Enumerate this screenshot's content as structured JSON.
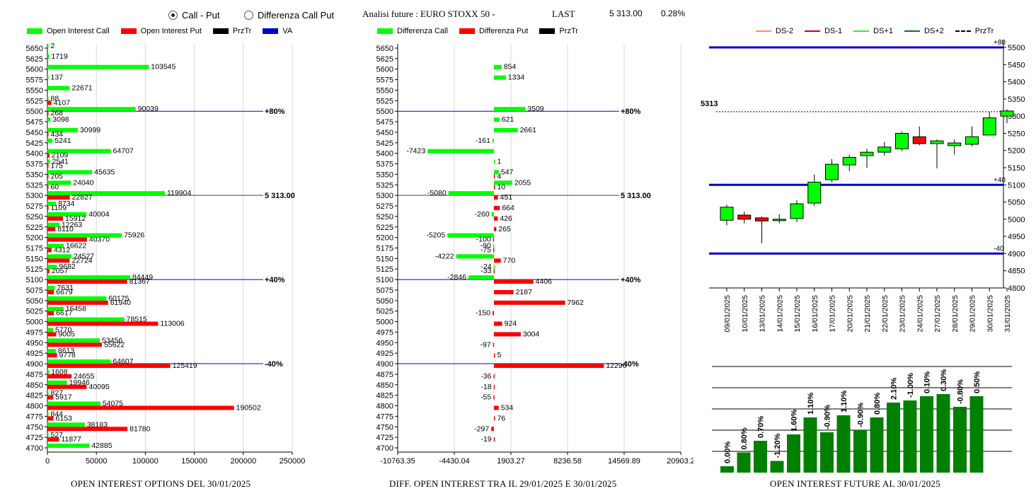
{
  "controls": {
    "radio_call_put": "Call - Put",
    "radio_diff": "Differenza Call Put",
    "selected": "call_put"
  },
  "header": {
    "title": "Analisi future : EURO STOXX 50 -",
    "last_label": "LAST",
    "last_value": "5 313.00",
    "change": "0.28%"
  },
  "colors": {
    "green": "#00ff00",
    "red": "#ff0000",
    "blue": "#0000cc",
    "dark_green": "#008000",
    "black": "#000000"
  },
  "legend_left": [
    {
      "label": "Open Interest Call",
      "color": "#00ff00"
    },
    {
      "label": "Open Interest Put",
      "color": "#ff0000"
    },
    {
      "label": "PrzTr",
      "color": "#000000"
    },
    {
      "label": "VA",
      "color": "#0000cc"
    }
  ],
  "legend_mid": [
    {
      "label": "Differenza Call",
      "color": "#00ff00"
    },
    {
      "label": "Differenza Put",
      "color": "#ff0000"
    },
    {
      "label": "PrzTr",
      "color": "#000000"
    }
  ],
  "legend_right": [
    {
      "label": "DS-2",
      "color": "#ff8c5a",
      "style": "solid"
    },
    {
      "label": "DS-1",
      "color": "#cc0000",
      "style": "solid"
    },
    {
      "label": "DS+1",
      "color": "#33ee33",
      "style": "solid"
    },
    {
      "label": "DS+2",
      "color": "#008000",
      "style": "solid"
    },
    {
      "label": "PrzTr",
      "color": "#000000",
      "style": "dashed"
    }
  ],
  "footers": {
    "left": "OPEN INTEREST OPTIONS DEL 30/01/2025",
    "mid": "DIFF. OPEN INTEREST TRA IL 29/01/2025 E 30/01/2025",
    "right": "OPEN INTEREST FUTURE AL 30/01/2025"
  },
  "chart_data": [
    {
      "type": "bar",
      "orientation": "horizontal",
      "title": "OPEN INTEREST OPTIONS DEL 30/01/2025",
      "strikes": [
        "5650",
        "5625",
        "5600",
        "5575",
        "5550",
        "5525",
        "5500",
        "5475",
        "5450",
        "5425",
        "5400",
        "5375",
        "5350",
        "5325",
        "5300",
        "5275",
        "5250",
        "5225",
        "5200",
        "5175",
        "5150",
        "5125",
        "5100",
        "5075",
        "5050",
        "5025",
        "5000",
        "4975",
        "4950",
        "4925",
        "4900",
        "4875",
        "4850",
        "4825",
        "4800",
        "4775",
        "4750",
        "4725",
        "4700"
      ],
      "series": [
        {
          "name": "Open Interest Call",
          "values": [
            2,
            1719,
            103545,
            137,
            22671,
            88,
            90039,
            3098,
            30999,
            5241,
            64707,
            2541,
            45635,
            24040,
            119904,
            8734,
            40004,
            12263,
            75926,
            16622,
            24527,
            9682,
            84449,
            7631,
            60175,
            16458,
            78515,
            5770,
            53456,
            8613,
            64607,
            1608,
            19946,
            827,
            54075,
            844,
            38183,
            527,
            42885
          ]
        },
        {
          "name": "Open Interest Put",
          "values": [
            null,
            null,
            null,
            null,
            null,
            4107,
            268,
            null,
            434,
            null,
            2109,
            175,
            205,
            60,
            22827,
            1109,
            15912,
            8110,
            40370,
            4312,
            22724,
            2057,
            81367,
            6679,
            61940,
            6617,
            113006,
            9005,
            55622,
            9778,
            125419,
            24655,
            40095,
            5917,
            190502,
            6153,
            81780,
            11877,
            null
          ]
        }
      ],
      "xlim": [
        0,
        250000
      ],
      "xticks": [
        "0",
        "50000",
        "100000",
        "150000",
        "200000",
        "250000"
      ],
      "annotations": [
        {
          "strike": "5500",
          "label": "+80%"
        },
        {
          "strike": "5300",
          "label": "5 313.00"
        },
        {
          "strike": "5100",
          "label": "+40%"
        },
        {
          "strike": "4900",
          "label": "-40%"
        }
      ]
    },
    {
      "type": "bar",
      "orientation": "horizontal",
      "title": "DIFF. OPEN INTEREST TRA IL 29/01/2025 E 30/01/2025",
      "strikes": [
        "5650",
        "5625",
        "5600",
        "5575",
        "5550",
        "5525",
        "5500",
        "5475",
        "5450",
        "5425",
        "5400",
        "5375",
        "5350",
        "5325",
        "5300",
        "5275",
        "5250",
        "5225",
        "5200",
        "5175",
        "5150",
        "5125",
        "5100",
        "5075",
        "5050",
        "5025",
        "5000",
        "4975",
        "4950",
        "4925",
        "4900",
        "4875",
        "4850",
        "4825",
        "4800",
        "4775",
        "4750",
        "4725",
        "4700"
      ],
      "series": [
        {
          "name": "Differenza Call",
          "values": [
            null,
            null,
            854,
            1334,
            null,
            null,
            3509,
            621,
            2661,
            -161,
            -7423,
            1,
            547,
            2055,
            -5080,
            null,
            -260,
            null,
            -5205,
            -90,
            -4222,
            -24,
            -2846,
            null,
            null,
            null,
            null,
            null,
            null,
            null,
            null,
            null,
            null,
            null,
            null,
            null,
            null,
            null,
            null
          ]
        },
        {
          "name": "Differenza Put",
          "values": [
            null,
            null,
            null,
            null,
            null,
            null,
            null,
            null,
            null,
            null,
            null,
            null,
            4,
            10,
            451,
            664,
            426,
            265,
            -100,
            -75,
            770,
            -33,
            4406,
            2187,
            7962,
            -150,
            924,
            3004,
            -97,
            5,
            12296,
            -36,
            -18,
            -55,
            534,
            76,
            -297,
            -19,
            null
          ]
        }
      ],
      "xlim": [
        -10763.35,
        20903.2
      ],
      "xticks": [
        "-10763.35",
        "-4430.04",
        "1903.27",
        "8236.58",
        "14569.89",
        "20903.2"
      ],
      "annotations": [
        {
          "strike": "5500",
          "label": "+80%"
        },
        {
          "strike": "5300",
          "label": "5 313.00"
        },
        {
          "strike": "5100",
          "label": "+40%"
        },
        {
          "strike": "4900",
          "label": "-40%"
        }
      ]
    },
    {
      "type": "candlestick",
      "categories": [
        "09/01/2025",
        "10/01/2025",
        "13/01/2025",
        "14/01/2025",
        "15/01/2025",
        "16/01/2025",
        "17/01/2025",
        "20/01/2025",
        "21/01/2025",
        "22/01/2025",
        "23/01/2025",
        "24/01/2025",
        "27/01/2025",
        "28/01/2025",
        "29/01/2025",
        "30/01/2025",
        "31/01/2025"
      ],
      "ohlc": [
        [
          4997,
          5042,
          4982,
          5035
        ],
        [
          5012,
          5022,
          4988,
          5000
        ],
        [
          5004,
          5008,
          4930,
          4995
        ],
        [
          4998,
          5015,
          4988,
          5000
        ],
        [
          5002,
          5055,
          4992,
          5045
        ],
        [
          5047,
          5130,
          5038,
          5108
        ],
        [
          5115,
          5175,
          5108,
          5160
        ],
        [
          5158,
          5188,
          5140,
          5180
        ],
        [
          5185,
          5205,
          5150,
          5195
        ],
        [
          5195,
          5225,
          5185,
          5210
        ],
        [
          5205,
          5255,
          5198,
          5250
        ],
        [
          5240,
          5270,
          5215,
          5220
        ],
        [
          5220,
          5232,
          5148,
          5228
        ],
        [
          5214,
          5232,
          5188,
          5222
        ],
        [
          5218,
          5270,
          5212,
          5240
        ],
        [
          5245,
          5312,
          5245,
          5295
        ],
        [
          5300,
          5320,
          5280,
          5315
        ]
      ],
      "ylim": [
        4800,
        5500
      ],
      "yticks": [
        "4800",
        "4850",
        "4900",
        "4950",
        "5000",
        "5050",
        "5100",
        "5150",
        "5200",
        "5250",
        "5300",
        "5350",
        "5400",
        "5450",
        "5500"
      ],
      "reference_lines": [
        {
          "value": 5500,
          "label": "+80"
        },
        {
          "value": 5100,
          "label": "+40"
        },
        {
          "value": 4900,
          "label": "-40"
        }
      ],
      "last_price": {
        "value": 5313,
        "label": "5313"
      }
    },
    {
      "type": "bar",
      "title": "OPEN INTEREST FUTURE AL 30/01/2025",
      "values": [
        0.3,
        0.95,
        1.5,
        0.55,
        1.8,
        2.6,
        1.9,
        2.7,
        2.0,
        2.6,
        3.3,
        3.4,
        3.6,
        3.7,
        3.1,
        3.6
      ],
      "labels": [
        "0.00%",
        "0.80%",
        "0.70%",
        "-1.20%",
        "1.60%",
        "1.10%",
        "-0.90%",
        "1.10%",
        "-0.90%",
        "0.80%",
        "2.10%",
        "-1.00%",
        "0.10%",
        "0.30%",
        "-0.80%",
        "0.50%"
      ]
    }
  ]
}
